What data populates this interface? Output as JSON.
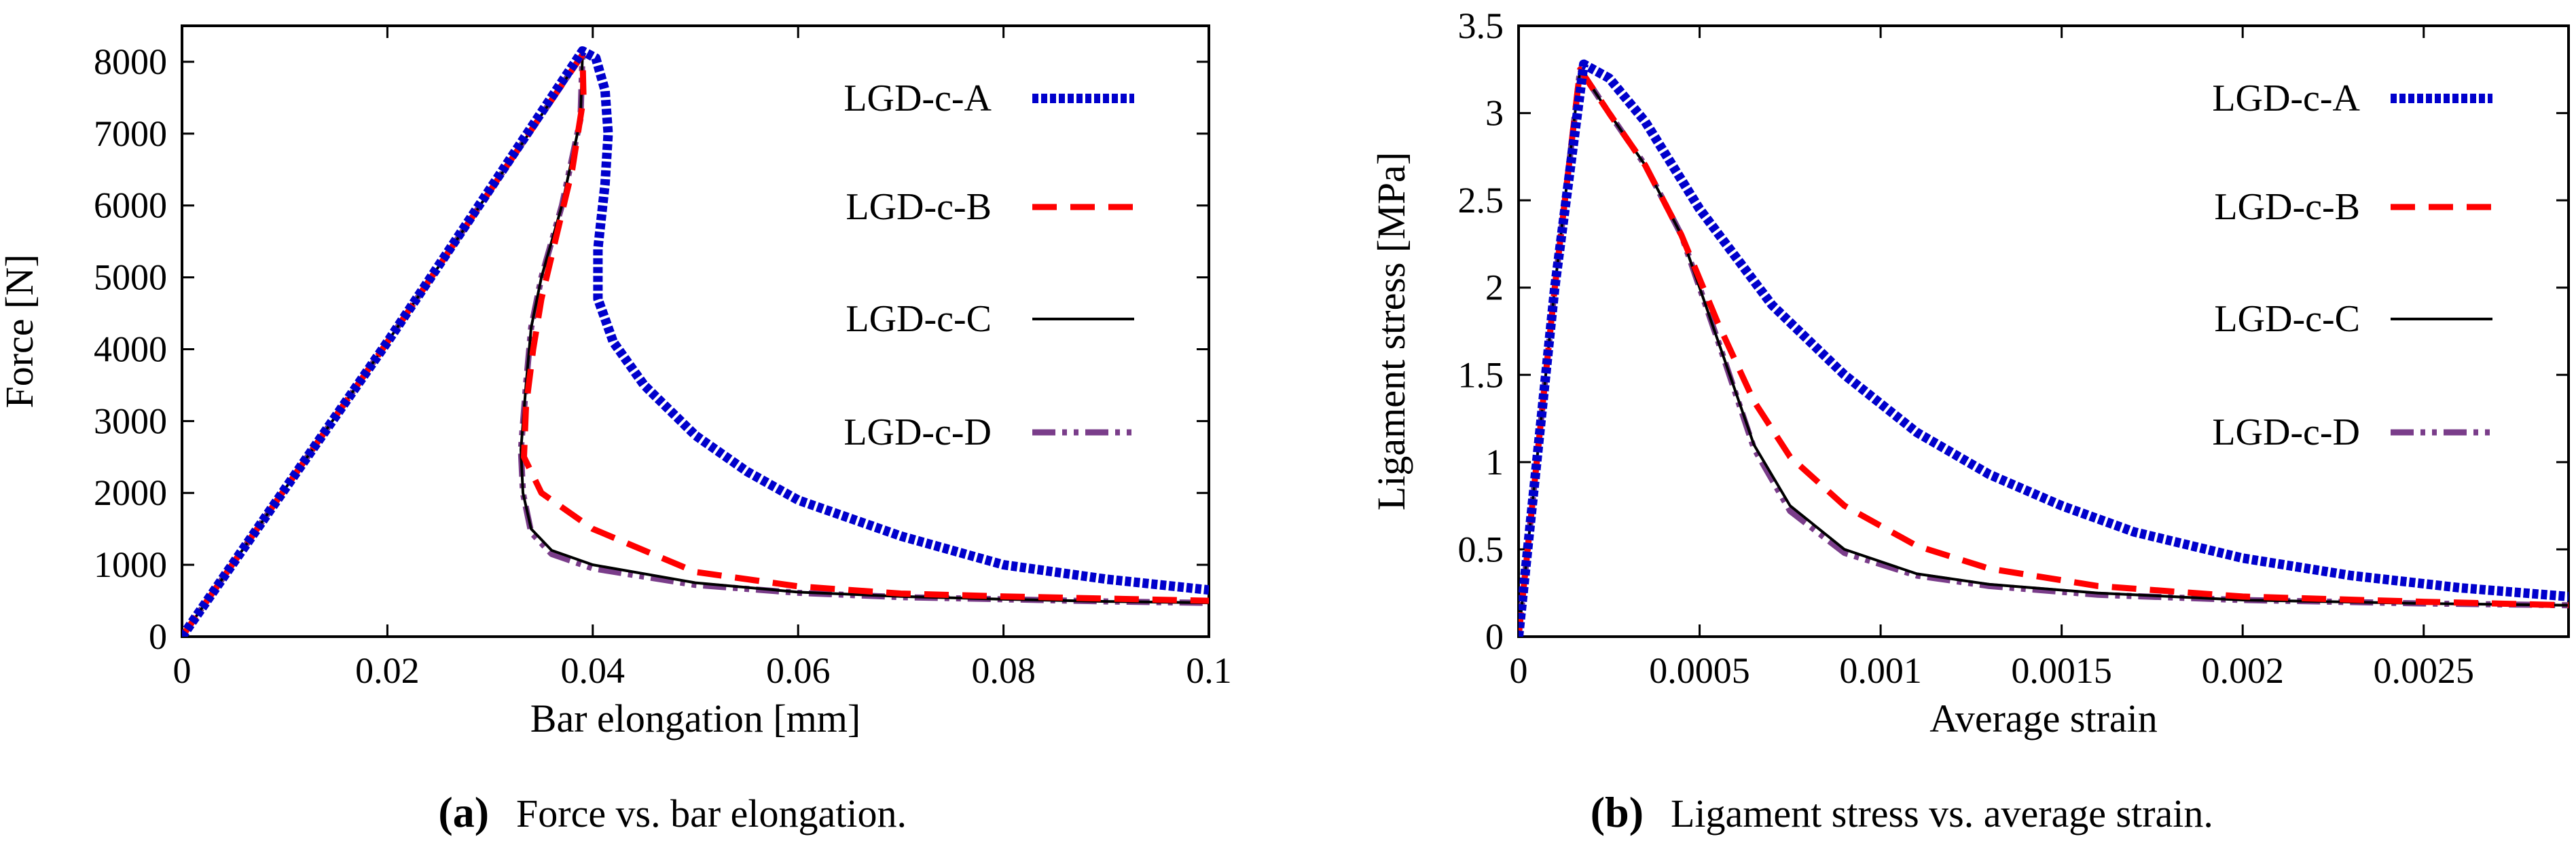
{
  "figure": {
    "captions": [
      {
        "letter": "(a)",
        "text": "Force vs. bar elongation."
      },
      {
        "letter": "(b)",
        "text": "Ligament stress vs. average strain."
      }
    ]
  },
  "series_style": {
    "LGD-c-A": {
      "color": "#0000cc",
      "dash": "tight-dots"
    },
    "LGD-c-B": {
      "color": "#ff0000",
      "dash": "dashed"
    },
    "LGD-c-C": {
      "color": "#000000",
      "dash": "solid"
    },
    "LGD-c-D": {
      "color": "#7a3d8a",
      "dash": "dash-dot-dot"
    }
  },
  "chart_data": [
    {
      "type": "line",
      "title": "",
      "xlabel": "Bar elongation [mm]",
      "ylabel": "Force [N]",
      "xlim": [
        0,
        0.1
      ],
      "ylim": [
        0,
        8500
      ],
      "xticks": [
        0,
        0.02,
        0.04,
        0.06,
        0.08,
        0.1
      ],
      "xtick_labels": [
        "0",
        "0.02",
        "0.04",
        "0.06",
        "0.08",
        "0.1"
      ],
      "yticks": [
        0,
        1000,
        2000,
        3000,
        4000,
        5000,
        6000,
        7000,
        8000
      ],
      "ytick_labels": [
        "0",
        "1000",
        "2000",
        "3000",
        "4000",
        "5000",
        "6000",
        "7000",
        "8000"
      ],
      "legend_position": "top-right",
      "grid": false,
      "series": [
        {
          "name": "LGD-c-A",
          "points": [
            [
              0,
              0
            ],
            [
              0.02,
              4100
            ],
            [
              0.039,
              8150
            ],
            [
              0.0403,
              8050
            ],
            [
              0.0412,
              7600
            ],
            [
              0.0415,
              7000
            ],
            [
              0.0412,
              6300
            ],
            [
              0.0405,
              5400
            ],
            [
              0.0405,
              4700
            ],
            [
              0.042,
              4100
            ],
            [
              0.045,
              3500
            ],
            [
              0.05,
              2800
            ],
            [
              0.055,
              2300
            ],
            [
              0.06,
              1900
            ],
            [
              0.07,
              1400
            ],
            [
              0.08,
              1000
            ],
            [
              0.09,
              800
            ],
            [
              0.1,
              650
            ]
          ]
        },
        {
          "name": "LGD-c-B",
          "points": [
            [
              0,
              0
            ],
            [
              0.02,
              4100
            ],
            [
              0.039,
              8100
            ],
            [
              0.0391,
              7500
            ],
            [
              0.038,
              6500
            ],
            [
              0.0365,
              5600
            ],
            [
              0.035,
              4700
            ],
            [
              0.0342,
              4000
            ],
            [
              0.0335,
              3200
            ],
            [
              0.0333,
              2500
            ],
            [
              0.035,
              2000
            ],
            [
              0.04,
              1500
            ],
            [
              0.05,
              900
            ],
            [
              0.06,
              700
            ],
            [
              0.07,
              600
            ],
            [
              0.08,
              560
            ],
            [
              0.09,
              530
            ],
            [
              0.1,
              500
            ]
          ]
        },
        {
          "name": "LGD-c-C",
          "points": [
            [
              0,
              0
            ],
            [
              0.02,
              4100
            ],
            [
              0.039,
              8100
            ],
            [
              0.0388,
              7200
            ],
            [
              0.037,
              6000
            ],
            [
              0.035,
              5000
            ],
            [
              0.034,
              4300
            ],
            [
              0.0335,
              3500
            ],
            [
              0.033,
              2600
            ],
            [
              0.0332,
              2000
            ],
            [
              0.034,
              1500
            ],
            [
              0.036,
              1200
            ],
            [
              0.04,
              1000
            ],
            [
              0.05,
              750
            ],
            [
              0.06,
              620
            ],
            [
              0.07,
              560
            ],
            [
              0.08,
              520
            ],
            [
              0.09,
              490
            ],
            [
              0.1,
              470
            ]
          ]
        },
        {
          "name": "LGD-c-D",
          "points": [
            [
              0,
              0
            ],
            [
              0.02,
              4100
            ],
            [
              0.039,
              8100
            ],
            [
              0.0388,
              7200
            ],
            [
              0.037,
              6000
            ],
            [
              0.035,
              5000
            ],
            [
              0.034,
              4300
            ],
            [
              0.0335,
              3500
            ],
            [
              0.033,
              2600
            ],
            [
              0.0332,
              2000
            ],
            [
              0.034,
              1450
            ],
            [
              0.036,
              1150
            ],
            [
              0.04,
              950
            ],
            [
              0.05,
              720
            ],
            [
              0.06,
              610
            ],
            [
              0.07,
              550
            ],
            [
              0.08,
              520
            ],
            [
              0.09,
              490
            ],
            [
              0.1,
              470
            ]
          ]
        }
      ]
    },
    {
      "type": "line",
      "title": "",
      "xlabel": "Average strain",
      "ylabel": "Ligament stress [MPa]",
      "xlim": [
        0,
        0.0029
      ],
      "ylim": [
        0,
        3.5
      ],
      "xticks": [
        0,
        0.0005,
        0.001,
        0.0015,
        0.002,
        0.0025
      ],
      "xtick_labels": [
        "0",
        "0.0005",
        "0.001",
        "0.0015",
        "0.002",
        "0.0025"
      ],
      "yticks": [
        0,
        0.5,
        1,
        1.5,
        2,
        2.5,
        3,
        3.5
      ],
      "ytick_labels": [
        "0",
        "0.5",
        "1",
        "1.5",
        "2",
        "2.5",
        "3",
        "3.5"
      ],
      "legend_position": "top-right",
      "grid": false,
      "series": [
        {
          "name": "LGD-c-A",
          "points": [
            [
              0,
              0
            ],
            [
              5e-05,
              1.0
            ],
            [
              0.0001,
              2.0
            ],
            [
              0.00018,
              3.28
            ],
            [
              0.00025,
              3.2
            ],
            [
              0.00035,
              2.95
            ],
            [
              0.0005,
              2.45
            ],
            [
              0.0007,
              1.9
            ],
            [
              0.0009,
              1.5
            ],
            [
              0.0011,
              1.17
            ],
            [
              0.0013,
              0.93
            ],
            [
              0.0015,
              0.75
            ],
            [
              0.0017,
              0.6
            ],
            [
              0.002,
              0.45
            ],
            [
              0.0023,
              0.35
            ],
            [
              0.0026,
              0.28
            ],
            [
              0.0029,
              0.23
            ]
          ]
        },
        {
          "name": "LGD-c-B",
          "points": [
            [
              0,
              0
            ],
            [
              5e-05,
              1.0
            ],
            [
              0.0001,
              2.0
            ],
            [
              0.00017,
              3.25
            ],
            [
              0.00025,
              3.0
            ],
            [
              0.00035,
              2.7
            ],
            [
              0.00045,
              2.3
            ],
            [
              0.00055,
              1.8
            ],
            [
              0.00065,
              1.35
            ],
            [
              0.00075,
              1.03
            ],
            [
              0.0009,
              0.75
            ],
            [
              0.0011,
              0.52
            ],
            [
              0.0013,
              0.39
            ],
            [
              0.0016,
              0.29
            ],
            [
              0.002,
              0.23
            ],
            [
              0.0025,
              0.2
            ],
            [
              0.0029,
              0.18
            ]
          ]
        },
        {
          "name": "LGD-c-C",
          "points": [
            [
              0,
              0
            ],
            [
              5e-05,
              1.0
            ],
            [
              0.0001,
              2.0
            ],
            [
              0.00017,
              3.25
            ],
            [
              0.00025,
              3.0
            ],
            [
              0.00035,
              2.7
            ],
            [
              0.00045,
              2.3
            ],
            [
              0.00055,
              1.7
            ],
            [
              0.00065,
              1.1
            ],
            [
              0.00075,
              0.75
            ],
            [
              0.0009,
              0.5
            ],
            [
              0.0011,
              0.36
            ],
            [
              0.0013,
              0.3
            ],
            [
              0.0016,
              0.25
            ],
            [
              0.002,
              0.21
            ],
            [
              0.0025,
              0.19
            ],
            [
              0.0029,
              0.18
            ]
          ]
        },
        {
          "name": "LGD-c-D",
          "points": [
            [
              0,
              0
            ],
            [
              5e-05,
              1.0
            ],
            [
              0.0001,
              2.0
            ],
            [
              0.00017,
              3.25
            ],
            [
              0.00025,
              3.0
            ],
            [
              0.00035,
              2.7
            ],
            [
              0.00045,
              2.3
            ],
            [
              0.00055,
              1.7
            ],
            [
              0.00065,
              1.08
            ],
            [
              0.00075,
              0.72
            ],
            [
              0.0009,
              0.48
            ],
            [
              0.0011,
              0.35
            ],
            [
              0.0013,
              0.29
            ],
            [
              0.0016,
              0.24
            ],
            [
              0.002,
              0.21
            ],
            [
              0.0025,
              0.19
            ],
            [
              0.0029,
              0.18
            ]
          ]
        }
      ]
    }
  ]
}
